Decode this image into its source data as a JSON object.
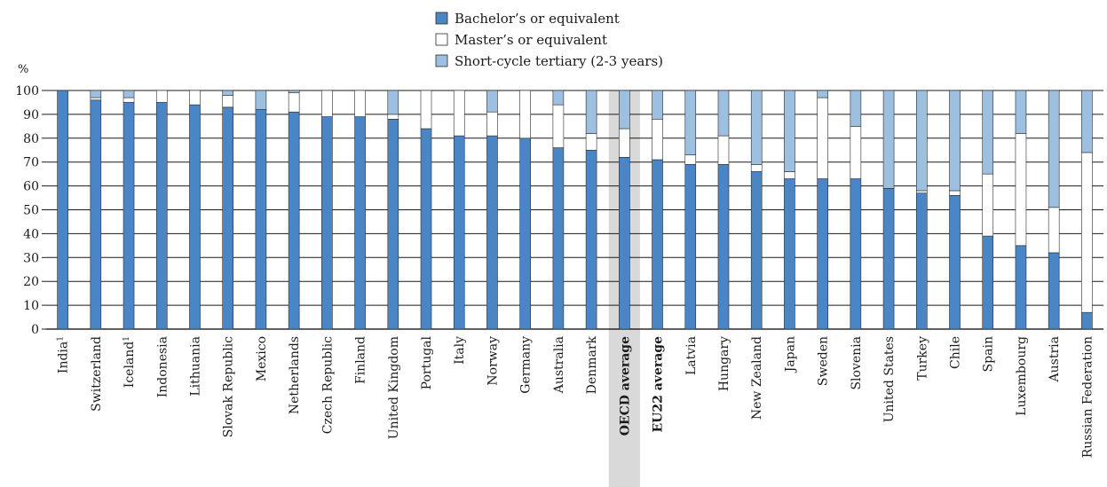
{
  "chart_data": {
    "type": "bar",
    "stacked": true,
    "title": "",
    "xlabel": "",
    "ylabel": "%",
    "ylim": [
      0,
      100
    ],
    "yticks": [
      0,
      10,
      20,
      30,
      40,
      50,
      60,
      70,
      80,
      90,
      100
    ],
    "grid": true,
    "legend": "top-center",
    "categories": [
      "India",
      "Switzerland",
      "Iceland",
      "Indonesia",
      "Lithuania",
      "Slovak Republic",
      "Mexico",
      "Netherlands",
      "Czech Republic",
      "Finland",
      "United Kingdom",
      "Portugal",
      "Italy",
      "Norway",
      "Germany",
      "Australia",
      "Denmark",
      "OECD average",
      "EU22 average",
      "Latvia",
      "Hungary",
      "New Zealand",
      "Japan",
      "Sweden",
      "Slovenia",
      "United States",
      "Turkey",
      "Chile",
      "Spain",
      "Luxembourg",
      "Austria",
      "Russian Federation"
    ],
    "category_footnotes": [
      "1",
      "",
      "1",
      "",
      "",
      "",
      "",
      "",
      "",
      "",
      "",
      "",
      "",
      "",
      "",
      "",
      "",
      "",
      "",
      "",
      "",
      "",
      "",
      "",
      "",
      "",
      "",
      "",
      "",
      "",
      "",
      ""
    ],
    "highlighted_categories": [
      "OECD average",
      "EU22 average"
    ],
    "shaded_category": "OECD average",
    "series": [
      {
        "name": "Bachelor’s or equivalent",
        "color": "#4a86c5",
        "values": [
          100,
          96,
          95,
          95,
          94,
          93,
          92,
          91,
          89,
          89,
          88,
          84,
          81,
          81,
          80,
          76,
          75,
          72,
          71,
          69,
          69,
          66,
          63,
          63,
          63,
          59,
          57,
          56,
          39,
          35,
          32,
          7
        ]
      },
      {
        "name": "Master’s or equivalent",
        "color": "#ffffff",
        "values": [
          0,
          1,
          2,
          5,
          6,
          5,
          0,
          8,
          11,
          11,
          2,
          16,
          19,
          10,
          20,
          18,
          7,
          12,
          17,
          4,
          12,
          3,
          3,
          34,
          22,
          0,
          1,
          2,
          26,
          47,
          19,
          67
        ]
      },
      {
        "name": "Short-cycle tertiary (2-3 years)",
        "color": "#9dbfe0",
        "values": [
          0,
          3,
          3,
          0,
          0,
          2,
          8,
          1,
          0,
          0,
          10,
          0,
          0,
          9,
          0,
          6,
          18,
          16,
          12,
          27,
          19,
          31,
          34,
          3,
          15,
          41,
          42,
          42,
          35,
          18,
          49,
          26
        ]
      }
    ]
  }
}
